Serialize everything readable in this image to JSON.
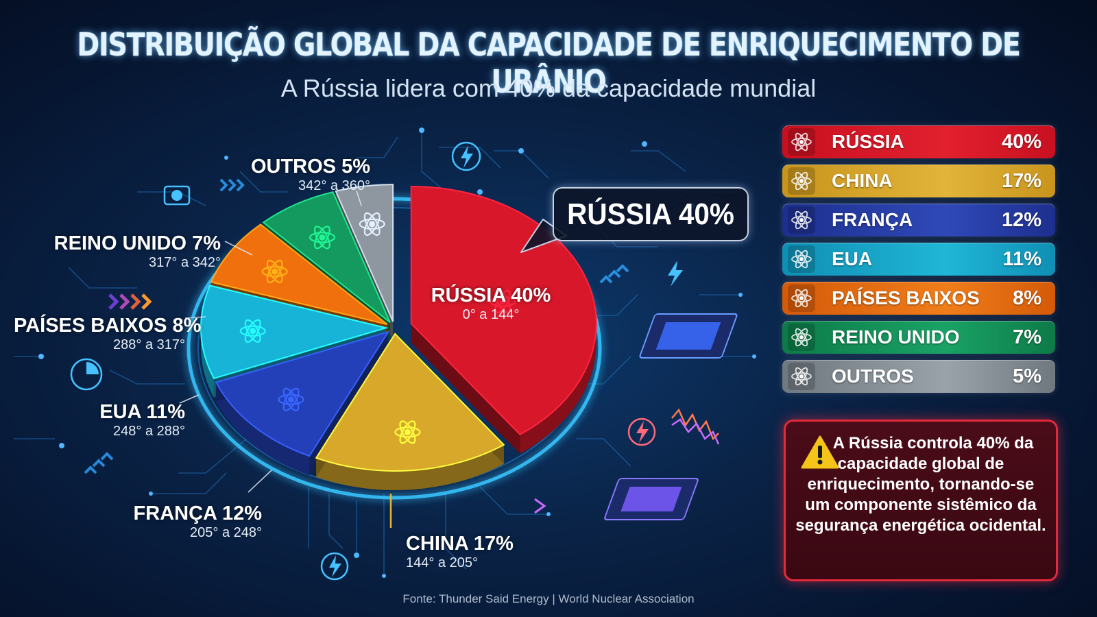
{
  "title": "DISTRIBUIÇÃO GLOBAL DA CAPACIDADE DE ENRIQUECIMENTO DE URÂNIO",
  "subtitle": "A Rússia lidera com 40% da capacidade mundial",
  "callout": "RÚSSIA 40%",
  "chart_data": {
    "type": "pie",
    "title": "DISTRIBUIÇÃO GLOBAL DA CAPACIDADE DE ENRIQUECIMENTO DE URÂNIO",
    "subtitle": "A Rússia lidera com 40% da capacidade mundial",
    "slices": [
      {
        "name": "RÚSSIA",
        "value": 40,
        "label": "RÚSSIA 40%",
        "angles": "0° a 144°",
        "start_deg": 0,
        "end_deg": 144,
        "color": "#d8182a"
      },
      {
        "name": "CHINA",
        "value": 17,
        "label": "CHINA 17%",
        "angles": "144° a 205°",
        "start_deg": 144,
        "end_deg": 205,
        "color": "#d7a82a"
      },
      {
        "name": "FRANÇA",
        "value": 12,
        "label": "FRANÇA 12%",
        "angles": "205° a 248°",
        "start_deg": 205,
        "end_deg": 248,
        "color": "#2340b8"
      },
      {
        "name": "EUA",
        "value": 11,
        "label": "EUA 11%",
        "angles": "248° a 288°",
        "start_deg": 248,
        "end_deg": 288,
        "color": "#17b4d8"
      },
      {
        "name": "PAÍSES BAIXOS",
        "value": 8,
        "label": "PAÍSES BAIXOS 8%",
        "angles": "288° a 317°",
        "start_deg": 288,
        "end_deg": 317,
        "color": "#f0700e"
      },
      {
        "name": "REINO UNIDO",
        "value": 7,
        "label": "REINO UNIDO 7%",
        "angles": "317° a 342°",
        "start_deg": 317,
        "end_deg": 342,
        "color": "#149a5e"
      },
      {
        "name": "OUTROS",
        "value": 5,
        "label": "OUTROS 5%",
        "angles": "342° a 360°",
        "start_deg": 342,
        "end_deg": 360,
        "color": "#8e969f"
      }
    ]
  },
  "legend": [
    {
      "name": "RÚSSIA",
      "value": "40%",
      "color": "#c81020",
      "color2": "#e2202e"
    },
    {
      "name": "CHINA",
      "value": "17%",
      "color": "#c8941c",
      "color2": "#e2b43a"
    },
    {
      "name": "FRANÇA",
      "value": "12%",
      "color": "#1d2f8e",
      "color2": "#2f49b8"
    },
    {
      "name": "EUA",
      "value": "11%",
      "color": "#0f8fb4",
      "color2": "#20b6d6"
    },
    {
      "name": "PAÍSES BAIXOS",
      "value": "8%",
      "color": "#d45a08",
      "color2": "#f07d1a"
    },
    {
      "name": "REINO UNIDO",
      "value": "7%",
      "color": "#0d7a48",
      "color2": "#1aa265"
    },
    {
      "name": "OUTROS",
      "value": "5%",
      "color": "#6f777f",
      "color2": "#9aa2aa"
    }
  ],
  "warning": {
    "text": "A Rússia controla 40% da capacidade global de enriquecimento, tornando-se um componente sistêmico da segurança energética ocidental."
  },
  "source": "Fonte: Thunder Said Energy | World Nuclear Association"
}
